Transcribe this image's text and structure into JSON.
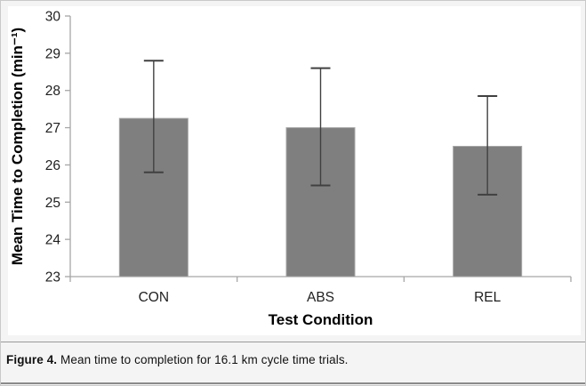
{
  "page": {
    "background": "#f4f4f4",
    "border_color": "#c9c9c9",
    "chart_canvas_color": "#ffffff"
  },
  "chart_data": {
    "type": "bar",
    "categories": [
      "CON",
      "ABS",
      "REL"
    ],
    "values": [
      27.25,
      27.0,
      26.5
    ],
    "error_upper": [
      28.8,
      28.6,
      27.85
    ],
    "error_lower": [
      25.8,
      25.45,
      25.2
    ],
    "title": "",
    "xlabel": "Test Condition",
    "ylabel": "Mean Time to Completion (min⁻¹)",
    "ylim": [
      23,
      30
    ],
    "yticks": [
      23,
      24,
      25,
      26,
      27,
      28,
      29,
      30
    ],
    "grid": false,
    "legend": "none",
    "bar_color": "#7f7f7f",
    "bar_border_color": "#a6a6a6",
    "axis_color": "#a6a6a6",
    "error_bar_color": "#404040",
    "tick_label_color": "#1f1f1f",
    "axis_title_color": "#000000"
  },
  "caption": {
    "label": "Figure 4.",
    "text": " Mean time to completion for 16.1 km cycle time trials."
  }
}
